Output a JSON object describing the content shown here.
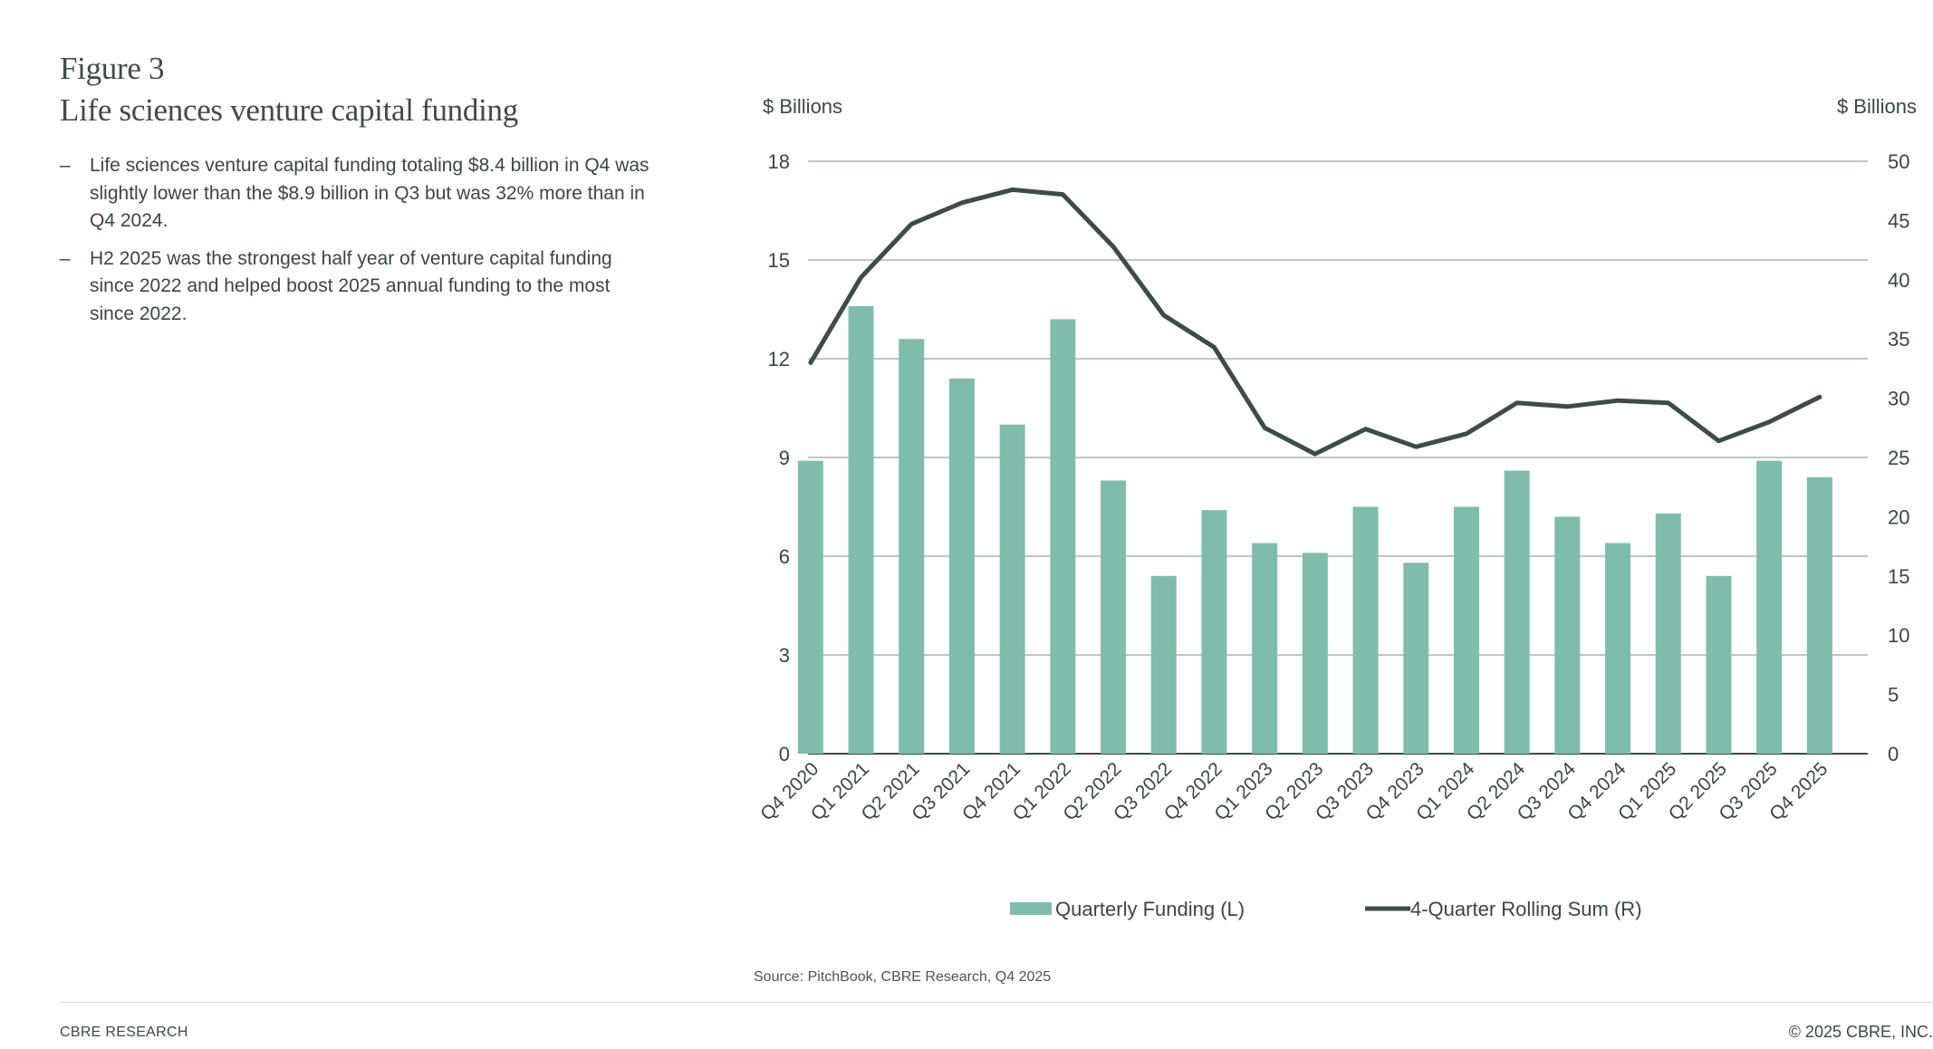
{
  "figure": {
    "label": "Figure 3",
    "title": "Life sciences venture capital funding"
  },
  "bullets": [
    {
      "marker": "–",
      "text": "Life sciences venture capital funding totaling $8.4 billion in Q4 was slightly lower than the $8.9 billion in Q3 but was 32% more than in Q4 2024."
    },
    {
      "marker": "–",
      "text": "H2 2025 was the strongest half year of venture capital funding since 2022 and helped boost 2025 annual funding to the most since 2022."
    }
  ],
  "chart_data": {
    "type": "bar",
    "title": "",
    "xlabel": "",
    "ylabel": "$ Billions",
    "ylabel_right": "$ Billions",
    "ylim": [
      0,
      18
    ],
    "yticks": [
      0,
      3,
      6,
      9,
      12,
      15,
      18
    ],
    "ylim_right": [
      0,
      50
    ],
    "yticks_right": [
      0,
      5,
      10,
      15,
      20,
      25,
      30,
      35,
      40,
      45,
      50
    ],
    "grid": true,
    "legend_position": "bottom-center",
    "categories": [
      "Q4 2020",
      "Q1 2021",
      "Q2 2021",
      "Q3 2021",
      "Q4 2021",
      "Q1 2022",
      "Q2 2022",
      "Q3 2022",
      "Q4 2022",
      "Q1 2023",
      "Q2 2023",
      "Q3 2023",
      "Q4 2023",
      "Q1 2024",
      "Q2 2024",
      "Q3 2024",
      "Q4 2024",
      "Q1 2025",
      "Q2 2025",
      "Q3 2025",
      "Q4 2025"
    ],
    "series": [
      {
        "name": "Quarterly Funding (L)",
        "type": "bar",
        "axis": "left",
        "color": "#80bcac",
        "values": [
          8.9,
          13.6,
          12.6,
          11.4,
          10.0,
          13.2,
          8.3,
          5.4,
          7.4,
          6.4,
          6.1,
          7.5,
          5.8,
          7.5,
          8.6,
          7.2,
          6.4,
          7.3,
          5.4,
          8.9,
          8.4
        ]
      },
      {
        "name": "4-Quarter Rolling Sum (R)",
        "type": "line",
        "axis": "right",
        "color": "#3d4b4b",
        "values": [
          33.0,
          40.2,
          44.7,
          46.5,
          47.6,
          47.2,
          42.8,
          37.0,
          34.3,
          27.5,
          25.3,
          27.4,
          25.9,
          27.0,
          29.6,
          29.3,
          29.8,
          29.6,
          26.4,
          28.0,
          30.1
        ]
      }
    ]
  },
  "source": "Source: PitchBook, CBRE Research, Q4 2025",
  "footer": {
    "left": "CBRE RESEARCH",
    "right": "© 2025 CBRE, INC."
  }
}
